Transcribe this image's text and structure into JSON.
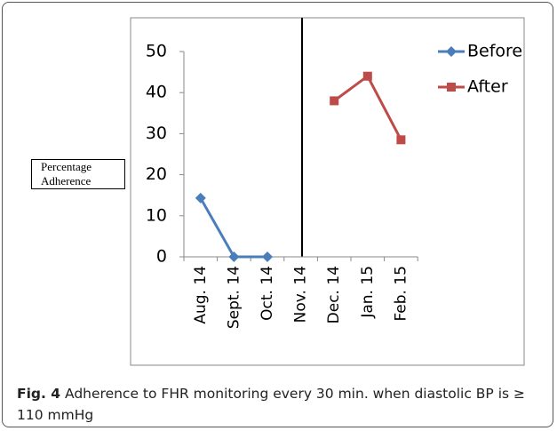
{
  "chart_data": {
    "type": "line",
    "y_label": "Percentage Adherence",
    "categories": [
      "Aug. 14",
      "Sept. 14",
      "Oct. 14",
      "Nov. 14",
      "Dec. 14",
      "Jan. 15",
      "Feb. 15"
    ],
    "series": [
      {
        "name": "Before",
        "color": "#4a7ebb",
        "marker": "diamond",
        "values": [
          14.3,
          0,
          0,
          null,
          null,
          null,
          null
        ]
      },
      {
        "name": "After",
        "color": "#be4b48",
        "marker": "square",
        "values": [
          null,
          null,
          null,
          null,
          38,
          44,
          28.5
        ]
      }
    ],
    "ylim": [
      0,
      50
    ],
    "yticks": [
      0,
      10,
      20,
      30,
      40,
      50
    ],
    "grid": false,
    "legend": "right"
  },
  "caption": {
    "label": "Fig. 4",
    "text": "Adherence to FHR monitoring every 30 min. when diastolic BP is ≥ 110 mmHg"
  }
}
